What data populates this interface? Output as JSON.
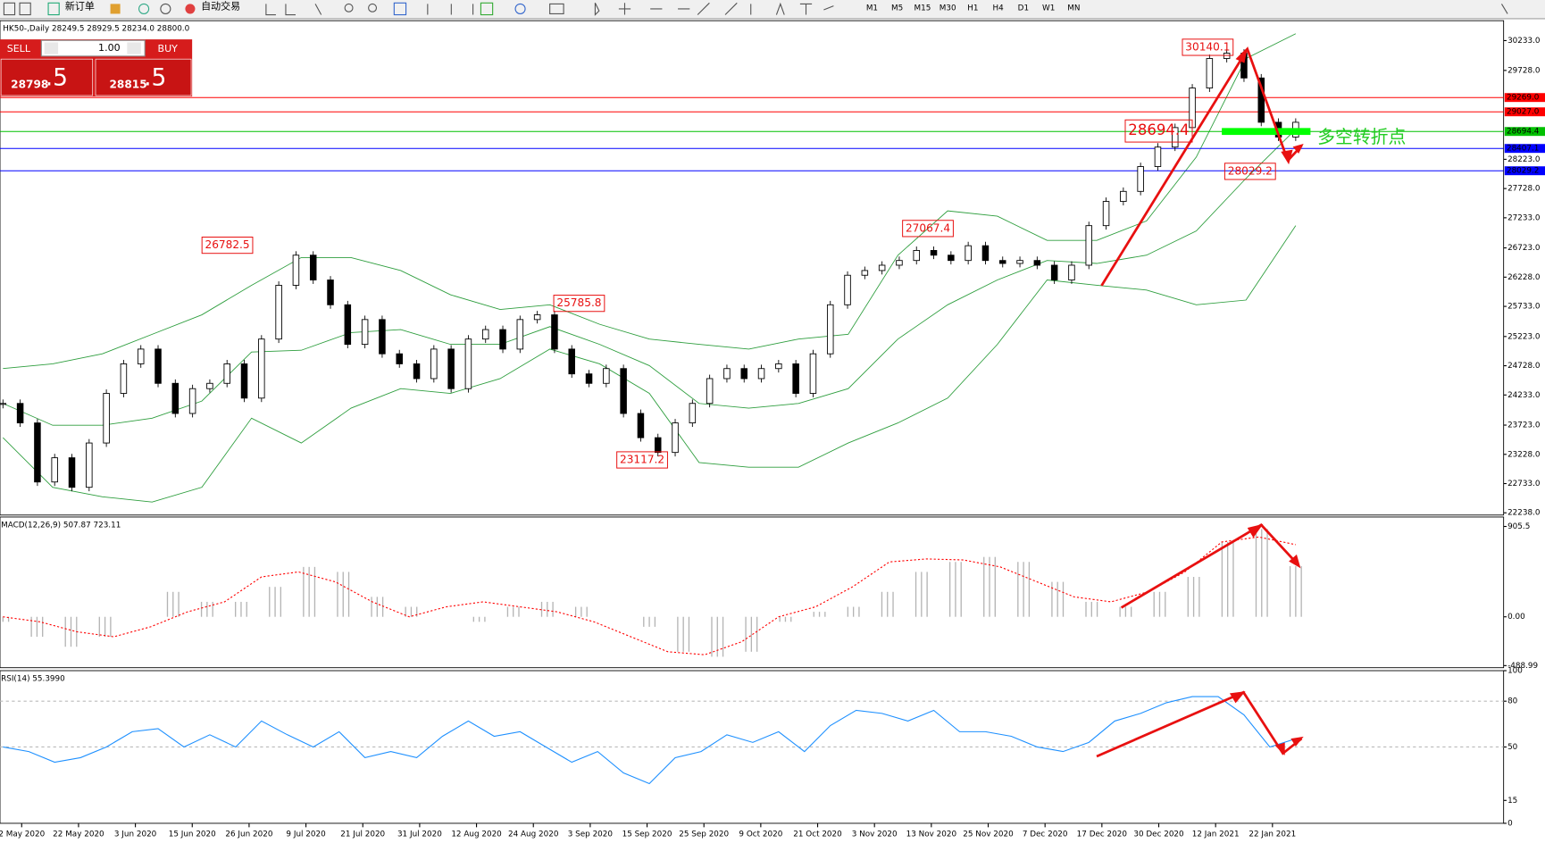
{
  "toolbar": {
    "new_order": "新订单",
    "auto_trading": "自动交易",
    "timeframes": [
      "M1",
      "M5",
      "M15",
      "M30",
      "H1",
      "H4",
      "D1",
      "W1",
      "MN"
    ]
  },
  "trade_panel": {
    "sell": "SELL",
    "buy": "BUY",
    "volume": "1.00",
    "sell_price_main": "28798",
    "sell_price_frac": ".5",
    "buy_price_main": "28815",
    "buy_price_frac": ".5"
  },
  "chart_data": [
    {
      "type": "candlestick",
      "title": "HK50-,Daily 28249.5 28929.5 28234.0 28800.0",
      "values": [
        24090,
        23760,
        22760,
        23170,
        22670,
        23420,
        24260,
        24760,
        25010,
        24430,
        23920,
        24340,
        24430,
        24760,
        24180,
        25180,
        26090,
        26600,
        26180,
        25760,
        25090,
        25510,
        24930,
        24760,
        24510,
        25010,
        24340,
        25180,
        25340,
        25010,
        25510,
        25590,
        25010,
        24590,
        24430,
        24680,
        23920,
        23510,
        23260,
        23760,
        24090,
        24510,
        24680,
        24510,
        24680,
        24760,
        24260,
        24930,
        25760,
        26260,
        26340,
        26430,
        26510,
        26680,
        26600,
        26510,
        26760,
        26510,
        26460,
        26510,
        26430,
        26180,
        26430,
        27100,
        27510,
        27680,
        28100,
        28430,
        28760,
        29430,
        29930,
        30020,
        29600,
        28850,
        28600,
        28850
      ],
      "color_up": "#ffffff",
      "color_down": "#000000",
      "bands": {
        "color": "#2e9e3e",
        "upper": [
          24680,
          24760,
          24930,
          25260,
          25590,
          26090,
          26560,
          26560,
          26340,
          25930,
          25680,
          25760,
          25430,
          25180,
          25090,
          25010,
          25180,
          25260,
          26600,
          27350,
          27260,
          26850,
          26850,
          27180,
          28260,
          29930,
          30350
        ],
        "middle": [
          24090,
          23720,
          23720,
          23840,
          24130,
          24960,
          24990,
          25290,
          25340,
          25090,
          25090,
          25390,
          25090,
          24730,
          24090,
          24010,
          24090,
          24340,
          25180,
          25760,
          26180,
          26510,
          26460,
          26600,
          27010,
          27900,
          28730
        ],
        "lower": [
          23510,
          22670,
          22510,
          22420,
          22670,
          23840,
          23420,
          24010,
          24340,
          24260,
          24510,
          25010,
          24760,
          24260,
          23090,
          23010,
          23010,
          23420,
          23760,
          24180,
          25090,
          26180,
          26090,
          26010,
          25760,
          25840,
          27100
        ]
      },
      "ylim": [
        22200,
        30570
      ],
      "yticks": [
        {
          "value": 30233,
          "label": "30233.0"
        },
        {
          "value": 29728,
          "label": "29728.0"
        },
        {
          "value": 28223,
          "label": "28223.0"
        },
        {
          "value": 27728,
          "label": "27728.0"
        },
        {
          "value": 27233,
          "label": "27233.0"
        },
        {
          "value": 26723,
          "label": "26723.0"
        },
        {
          "value": 26228,
          "label": "26228.0"
        },
        {
          "value": 25733,
          "label": "25733.0"
        },
        {
          "value": 25223,
          "label": "25223.0"
        },
        {
          "value": 24728,
          "label": "24728.0"
        },
        {
          "value": 24233,
          "label": "24233.0"
        },
        {
          "value": 23723,
          "label": "23723.0"
        },
        {
          "value": 23228,
          "label": "23228.0"
        },
        {
          "value": 22733,
          "label": "22733.0"
        },
        {
          "value": 22238,
          "label": "22238.0"
        }
      ],
      "levels": [
        {
          "value": 29269,
          "label": "29269.0",
          "color": "#ff0000"
        },
        {
          "value": 29027,
          "label": "29027.0",
          "color": "#ff0000"
        },
        {
          "value": 28694.4,
          "color": "#00c000"
        },
        {
          "value": 28407.1,
          "color": "#0000ff"
        },
        {
          "value": 28029.2,
          "color": "#0000ff"
        }
      ],
      "annotations": [
        30140.1,
        28694.4,
        28029.2,
        27067.4,
        26782.5,
        25785.8,
        23117.2
      ],
      "turning_point_label": "多空转折点",
      "x_labels": [
        "2 May 2020",
        "22 May 2020",
        "3 Jun 2020",
        "15 Jun 2020",
        "26 Jun 2020",
        "9 Jul 2020",
        "21 Jul 2020",
        "31 Jul 2020",
        "12 Aug 2020",
        "24 Aug 2020",
        "3 Sep 2020",
        "15 Sep 2020",
        "25 Sep 2020",
        "9 Oct 2020",
        "21 Oct 2020",
        "3 Nov 2020",
        "13 Nov 2020",
        "25 Nov 2020",
        "7 Dec 2020",
        "17 Dec 2020",
        "30 Dec 2020",
        "12 Jan 2021",
        "22 Jan 2021"
      ]
    },
    {
      "type": "macd",
      "title": "MACD(12,26,9) 507.87 723.11",
      "values": [
        -50,
        -200,
        -300,
        -200,
        0,
        250,
        150,
        150,
        300,
        500,
        450,
        200,
        100,
        0,
        -50,
        100,
        150,
        100,
        0,
        -100,
        -350,
        -400,
        -350,
        -50,
        50,
        100,
        250,
        450,
        550,
        600,
        550,
        350,
        150,
        100,
        250,
        400,
        750,
        880,
        507.87
      ],
      "signal": [
        0,
        -50,
        -150,
        -200,
        -100,
        50,
        150,
        400,
        450,
        350,
        150,
        0,
        100,
        150,
        100,
        50,
        -50,
        -200,
        -350,
        -380,
        -250,
        0,
        100,
        300,
        550,
        580,
        570,
        500,
        350,
        200,
        150,
        250,
        450,
        750,
        800,
        723.11
      ],
      "color": "#b4b4b4",
      "signal_color": "#ff0000",
      "ylim": [
        -510,
        1000
      ],
      "yticks": [
        905.5,
        {
          "value": 0,
          "label": "0.00"
        },
        -488.99
      ]
    },
    {
      "type": "line",
      "title": "RSI(14) 55.3990",
      "values": [
        50,
        47,
        40,
        43,
        50,
        60,
        62,
        50,
        58,
        50,
        67,
        58,
        50,
        60,
        43,
        47,
        43,
        57,
        67,
        57,
        60,
        50,
        40,
        47,
        33,
        26,
        43,
        47,
        58,
        53,
        60,
        47,
        64,
        74,
        72,
        67,
        74,
        60,
        60,
        57,
        50,
        47,
        53,
        67,
        72,
        79,
        83,
        83,
        71,
        50,
        55.399
      ],
      "color": "#1e90ff",
      "ylim": [
        0,
        100
      ],
      "yticks": [
        100,
        80,
        50,
        15,
        0
      ],
      "levels": [
        80,
        50
      ]
    }
  ]
}
